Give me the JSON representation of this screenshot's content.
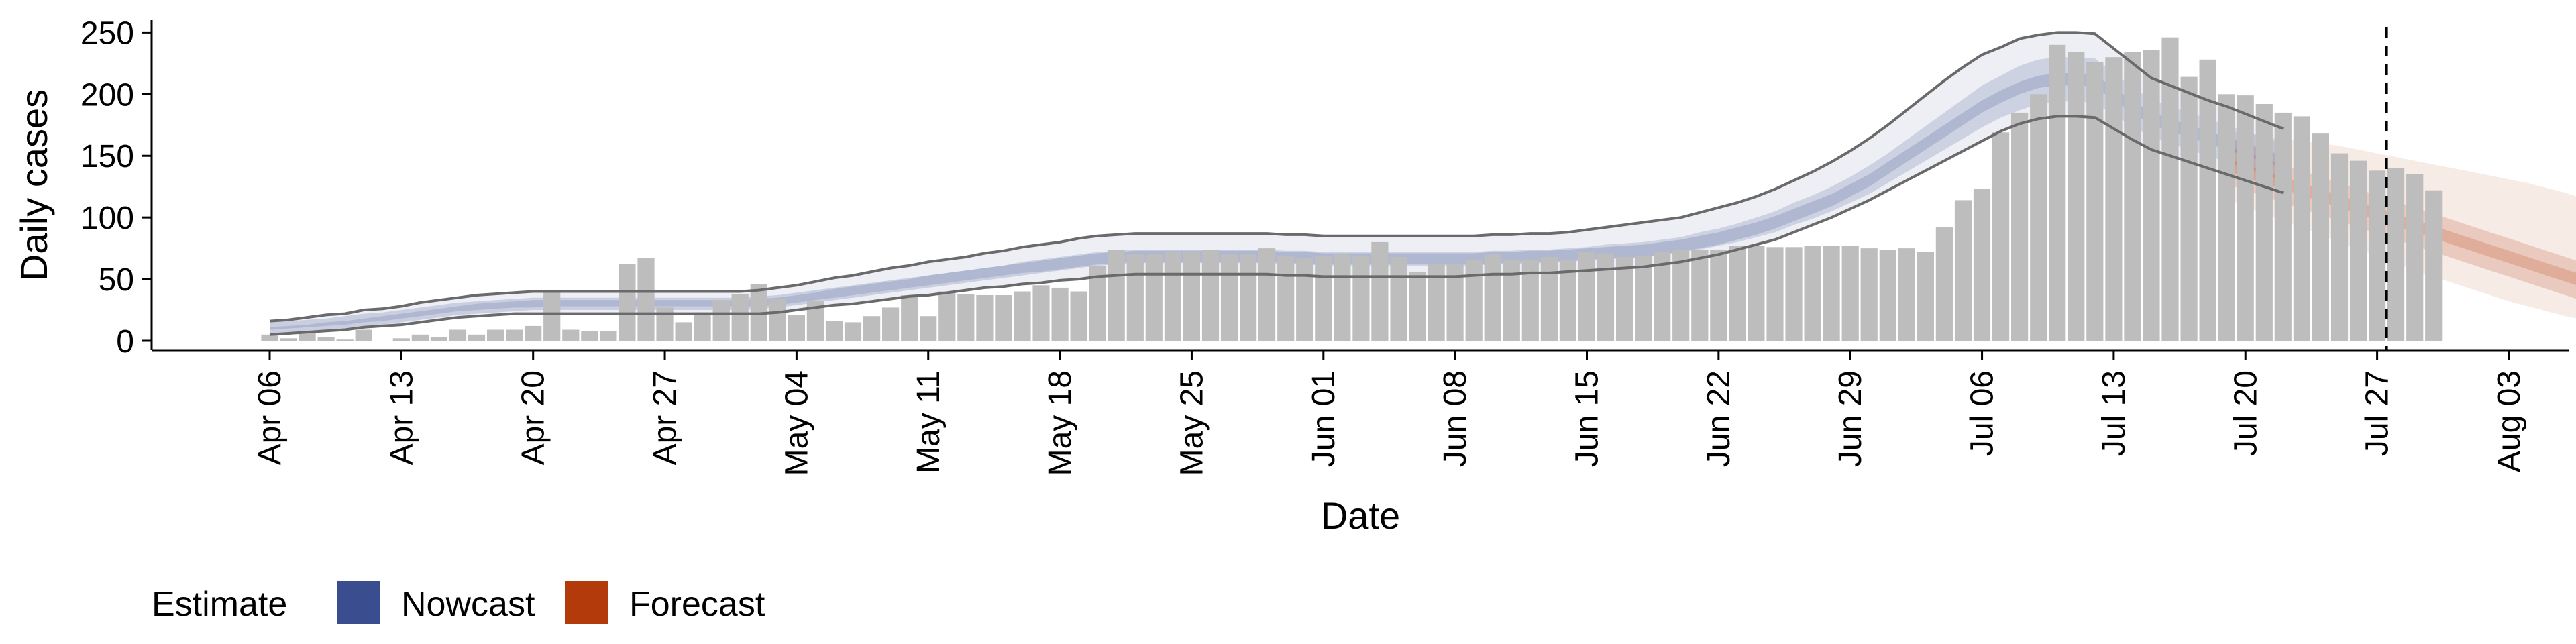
{
  "chart_data": {
    "type": "bar",
    "title": "",
    "xlabel": "Date",
    "ylabel": "Daily cases",
    "ylim": [
      0,
      260
    ],
    "yticks": [
      0,
      50,
      100,
      150,
      200,
      250
    ],
    "x_start": "2020-04-06",
    "x_range_days": [
      -2,
      121
    ],
    "xticks": [
      {
        "day": 0,
        "label": "Apr 06"
      },
      {
        "day": 7,
        "label": "Apr 13"
      },
      {
        "day": 14,
        "label": "Apr 20"
      },
      {
        "day": 21,
        "label": "Apr 27"
      },
      {
        "day": 28,
        "label": "May 04"
      },
      {
        "day": 35,
        "label": "May 11"
      },
      {
        "day": 42,
        "label": "May 18"
      },
      {
        "day": 49,
        "label": "May 25"
      },
      {
        "day": 56,
        "label": "Jun 01"
      },
      {
        "day": 63,
        "label": "Jun 08"
      },
      {
        "day": 70,
        "label": "Jun 15"
      },
      {
        "day": 77,
        "label": "Jun 22"
      },
      {
        "day": 84,
        "label": "Jun 29"
      },
      {
        "day": 91,
        "label": "Jul 06"
      },
      {
        "day": 98,
        "label": "Jul 13"
      },
      {
        "day": 105,
        "label": "Jul 20"
      },
      {
        "day": 112,
        "label": "Jul 27"
      },
      {
        "day": 119,
        "label": "Aug 03"
      }
    ],
    "reference_line_day": 112.5,
    "colors": {
      "bars": "#bdbdbd",
      "nowcast": "#3a4d8f",
      "forecast": "#b33a0b",
      "ci_lines": "#6a6a6a",
      "reference_line": "#000000"
    },
    "observed_cases": [
      5,
      2,
      6,
      3,
      1,
      9,
      0,
      2,
      5,
      3,
      9,
      5,
      9,
      9,
      12,
      41,
      9,
      8,
      8,
      62,
      67,
      27,
      15,
      23,
      33,
      38,
      46,
      34,
      21,
      32,
      16,
      15,
      20,
      27,
      37,
      20,
      40,
      38,
      37,
      37,
      40,
      45,
      43,
      40,
      61,
      74,
      70,
      70,
      72,
      72,
      74,
      70,
      70,
      75,
      69,
      67,
      69,
      70,
      69,
      80,
      68,
      56,
      62,
      62,
      66,
      70,
      66,
      66,
      68,
      66,
      72,
      71,
      68,
      69,
      72,
      74,
      74,
      74,
      77,
      77,
      76,
      76,
      77,
      77,
      77,
      75,
      74,
      75,
      72,
      92,
      114,
      123,
      169,
      185,
      200,
      240,
      234,
      226,
      230,
      234,
      236,
      246,
      214,
      228,
      200,
      199,
      192,
      185,
      182,
      168,
      152,
      146,
      138,
      140,
      135,
      122
    ],
    "series": [
      {
        "name": "Nowcast",
        "start_day": 0,
        "median": [
          10,
          11,
          12,
          13,
          15,
          17,
          18,
          20,
          22,
          24,
          26,
          27,
          28,
          29,
          30,
          30,
          30,
          30,
          30,
          30,
          30,
          30,
          30,
          30,
          30,
          30,
          31,
          32,
          34,
          36,
          38,
          40,
          42,
          44,
          46,
          48,
          50,
          52,
          54,
          56,
          58,
          60,
          62,
          64,
          66,
          67,
          68,
          68,
          68,
          68,
          68,
          68,
          68,
          68,
          67,
          67,
          66,
          66,
          66,
          66,
          66,
          66,
          66,
          66,
          66,
          67,
          67,
          68,
          68,
          69,
          70,
          71,
          72,
          73,
          75,
          77,
          80,
          83,
          87,
          91,
          96,
          102,
          108,
          114,
          122,
          130,
          140,
          150,
          160,
          170,
          180,
          190,
          198,
          205,
          210,
          212,
          212,
          211,
          200,
          190,
          180,
          175,
          170,
          165,
          160,
          155,
          150,
          145
        ],
        "inner_lo": [
          9,
          10,
          11,
          12,
          13,
          15,
          16,
          18,
          20,
          22,
          24,
          25,
          26,
          27,
          27,
          28,
          28,
          28,
          28,
          28,
          28,
          28,
          28,
          28,
          28,
          28,
          28,
          29,
          31,
          33,
          35,
          37,
          39,
          41,
          43,
          45,
          47,
          49,
          51,
          53,
          55,
          56,
          58,
          60,
          62,
          63,
          64,
          64,
          64,
          64,
          64,
          64,
          64,
          64,
          63,
          63,
          62,
          62,
          62,
          62,
          62,
          62,
          62,
          62,
          62,
          63,
          63,
          64,
          64,
          65,
          66,
          67,
          67,
          68,
          70,
          72,
          74,
          77,
          80,
          84,
          88,
          94,
          99,
          105,
          112,
          119,
          128,
          137,
          146,
          155,
          164,
          173,
          181,
          187,
          192,
          194,
          194,
          193,
          183,
          174,
          165,
          160,
          155,
          150,
          145,
          140,
          135,
          130
        ],
        "inner_hi": [
          11,
          12,
          13,
          15,
          16,
          18,
          20,
          22,
          24,
          26,
          28,
          30,
          31,
          32,
          33,
          33,
          33,
          33,
          33,
          33,
          33,
          33,
          33,
          33,
          33,
          33,
          34,
          35,
          37,
          39,
          42,
          44,
          46,
          48,
          50,
          53,
          55,
          57,
          59,
          61,
          64,
          66,
          68,
          70,
          72,
          73,
          74,
          74,
          74,
          74,
          74,
          74,
          74,
          74,
          73,
          73,
          72,
          72,
          72,
          72,
          72,
          72,
          72,
          72,
          72,
          73,
          73,
          74,
          74,
          75,
          76,
          78,
          79,
          80,
          82,
          84,
          88,
          91,
          95,
          100,
          105,
          112,
          118,
          125,
          133,
          142,
          152,
          163,
          174,
          185,
          196,
          207,
          215,
          223,
          228,
          230,
          230,
          229,
          217,
          206,
          195,
          190,
          185,
          180,
          175,
          170,
          165,
          160
        ],
        "outer_lo": [
          5,
          6,
          7,
          8,
          9,
          11,
          12,
          13,
          15,
          17,
          19,
          20,
          21,
          22,
          22,
          22,
          22,
          22,
          22,
          22,
          22,
          22,
          22,
          22,
          22,
          22,
          22,
          23,
          25,
          27,
          29,
          30,
          32,
          34,
          36,
          37,
          39,
          41,
          43,
          44,
          46,
          47,
          49,
          50,
          52,
          53,
          54,
          54,
          54,
          54,
          54,
          54,
          54,
          54,
          53,
          53,
          52,
          52,
          52,
          52,
          52,
          52,
          52,
          52,
          53,
          54,
          54,
          55,
          55,
          56,
          57,
          58,
          59,
          60,
          62,
          64,
          67,
          70,
          74,
          78,
          82,
          88,
          94,
          100,
          107,
          114,
          122,
          130,
          138,
          146,
          154,
          162,
          170,
          176,
          180,
          182,
          182,
          181,
          172,
          163,
          155,
          150,
          145,
          140,
          135,
          130,
          125,
          120
        ],
        "outer_hi": [
          16,
          17,
          19,
          21,
          22,
          25,
          26,
          28,
          31,
          33,
          35,
          37,
          38,
          39,
          40,
          40,
          40,
          40,
          40,
          40,
          40,
          40,
          40,
          40,
          40,
          40,
          41,
          43,
          45,
          48,
          51,
          53,
          56,
          59,
          61,
          64,
          66,
          68,
          71,
          73,
          76,
          78,
          80,
          83,
          85,
          86,
          87,
          87,
          87,
          87,
          87,
          87,
          87,
          87,
          86,
          86,
          85,
          85,
          85,
          85,
          85,
          85,
          85,
          85,
          85,
          86,
          86,
          87,
          87,
          88,
          90,
          92,
          94,
          96,
          98,
          100,
          104,
          108,
          112,
          117,
          123,
          130,
          137,
          145,
          154,
          164,
          175,
          187,
          199,
          211,
          222,
          232,
          238,
          245,
          248,
          250,
          250,
          249,
          237,
          225,
          213,
          207,
          201,
          195,
          190,
          184,
          178,
          172
        ]
      },
      {
        "name": "Forecast",
        "start_day": 104,
        "median": [
          143,
          138,
          133,
          128,
          123,
          118,
          113,
          108,
          103,
          98,
          93,
          88,
          83,
          78,
          73,
          68,
          63,
          58,
          53,
          48,
          43
        ],
        "inner_lo": [
          127,
          122,
          117,
          112,
          107,
          102,
          97,
          92,
          87,
          82,
          77,
          72,
          67,
          62,
          57,
          52,
          47,
          42,
          37,
          32,
          27
        ],
        "inner_hi": [
          158,
          153,
          148,
          143,
          138,
          133,
          128,
          123,
          118,
          113,
          108,
          103,
          98,
          93,
          88,
          83,
          78,
          73,
          68,
          63,
          58
        ],
        "outer_lo": [
          115,
          109,
          103,
          97,
          92,
          86,
          80,
          74,
          69,
          63,
          57,
          52,
          47,
          42,
          37,
          32,
          28,
          24,
          20,
          17,
          14
        ],
        "outer_hi": [
          170,
          168,
          166,
          164,
          162,
          160,
          158,
          155,
          152,
          149,
          146,
          143,
          140,
          137,
          134,
          131,
          128,
          124,
          120,
          115,
          110
        ]
      }
    ],
    "legend": {
      "title": "Estimate",
      "position": "bottom-left",
      "items": [
        {
          "label": "Nowcast",
          "color": "#3a4d8f"
        },
        {
          "label": "Forecast",
          "color": "#b33a0b"
        }
      ]
    }
  }
}
